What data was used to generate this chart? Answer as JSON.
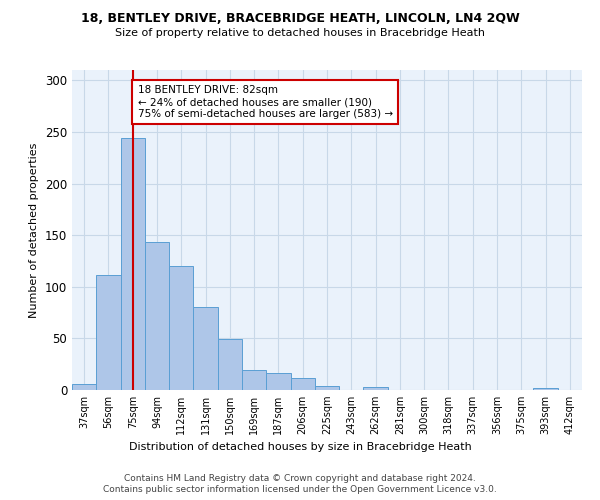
{
  "title1": "18, BENTLEY DRIVE, BRACEBRIDGE HEATH, LINCOLN, LN4 2QW",
  "title2": "Size of property relative to detached houses in Bracebridge Heath",
  "xlabel": "Distribution of detached houses by size in Bracebridge Heath",
  "ylabel": "Number of detached properties",
  "footnote1": "Contains HM Land Registry data © Crown copyright and database right 2024.",
  "footnote2": "Contains public sector information licensed under the Open Government Licence v3.0.",
  "bin_labels": [
    "37sqm",
    "56sqm",
    "75sqm",
    "94sqm",
    "112sqm",
    "131sqm",
    "150sqm",
    "169sqm",
    "187sqm",
    "206sqm",
    "225sqm",
    "243sqm",
    "262sqm",
    "281sqm",
    "300sqm",
    "318sqm",
    "337sqm",
    "356sqm",
    "375sqm",
    "393sqm",
    "412sqm"
  ],
  "bar_values": [
    6,
    111,
    244,
    143,
    120,
    80,
    49,
    19,
    16,
    12,
    4,
    0,
    3,
    0,
    0,
    0,
    0,
    0,
    0,
    2,
    0
  ],
  "bar_color": "#aec6e8",
  "bar_edge_color": "#5a9fd4",
  "highlight_bar_index": 2,
  "highlight_line_color": "#cc0000",
  "annotation_text": "18 BENTLEY DRIVE: 82sqm\n← 24% of detached houses are smaller (190)\n75% of semi-detached houses are larger (583) →",
  "annotation_box_color": "#ffffff",
  "annotation_box_edge": "#cc0000",
  "ylim": [
    0,
    310
  ],
  "yticks": [
    0,
    50,
    100,
    150,
    200,
    250,
    300
  ],
  "grid_color": "#c8d8e8",
  "background_color": "#eaf2fb",
  "fig_background": "#ffffff"
}
